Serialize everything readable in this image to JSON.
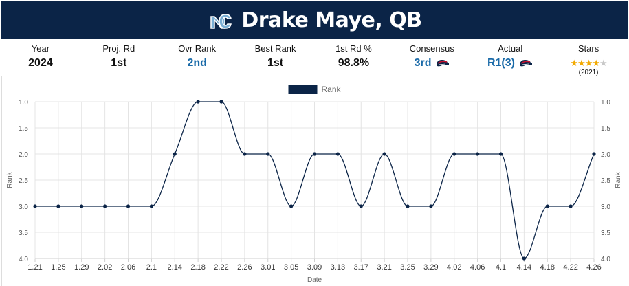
{
  "header": {
    "title": "Drake Maye, QB",
    "logo_icon": "unc-logo-icon"
  },
  "stats": [
    {
      "label": "Year",
      "value": "2024"
    },
    {
      "label": "Proj. Rd",
      "value": "1st"
    },
    {
      "label": "Ovr Rank",
      "value": "2nd",
      "accent": true
    },
    {
      "label": "Best Rank",
      "value": "1st"
    },
    {
      "label": "1st Rd %",
      "value": "98.8%"
    },
    {
      "label": "Consensus",
      "value": "3rd",
      "accent": true,
      "icon": "patriots-helmet-icon"
    },
    {
      "label": "Actual",
      "value": "R1(3)",
      "accent": true,
      "icon": "patriots-helmet-icon"
    },
    {
      "label": "Stars",
      "rating": 4,
      "max_rating": 5,
      "year": "(2021)"
    }
  ],
  "colors": {
    "header_bg": "#0b2447",
    "accent": "#1a6aa8",
    "line": "#0b2447",
    "star": "#f2a900"
  },
  "chart_data": {
    "type": "line",
    "title": "",
    "xlabel": "Date",
    "ylabel": "Rank",
    "x": [
      "1.21",
      "1.25",
      "1.29",
      "2.02",
      "2.06",
      "2.1",
      "2.14",
      "2.18",
      "2.22",
      "2.26",
      "3.01",
      "3.05",
      "3.09",
      "3.13",
      "3.17",
      "3.21",
      "3.25",
      "3.29",
      "4.02",
      "4.06",
      "4.1",
      "4.14",
      "4.18",
      "4.22",
      "4.26"
    ],
    "series": [
      {
        "name": "Rank",
        "values": [
          3,
          3,
          3,
          3,
          3,
          3,
          2,
          1,
          1,
          2,
          2,
          3,
          2,
          2,
          3,
          2,
          3,
          3,
          2,
          2,
          2,
          4,
          3,
          3,
          2
        ]
      }
    ],
    "ylim": [
      1.0,
      4.0
    ],
    "y_reversed": true,
    "y_ticks": [
      "1.0",
      "1.5",
      "2.0",
      "2.5",
      "3.0",
      "3.5",
      "4.0"
    ],
    "secondary_y_axis": true,
    "grid": true,
    "legend_position": "top-center",
    "smooth": true
  }
}
